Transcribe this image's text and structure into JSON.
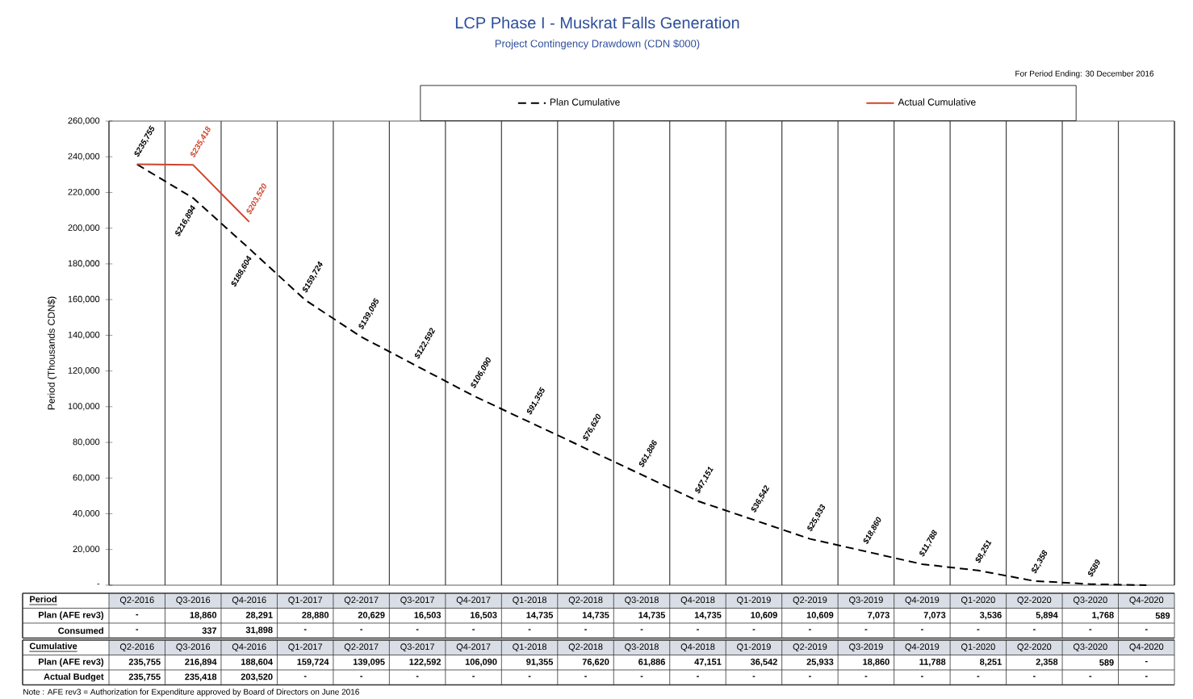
{
  "chart_data": [
    {
      "type": "line",
      "title": "LCP Phase I - Muskrat Falls Generation",
      "subtitle": "Project Contingency Drawdown (CDN $000)",
      "ylabel": "Period (Thousands CDN$)",
      "annotations": [
        "For Period Ending: 30 December 2016",
        "Note : AFE rev3 = Authorization for Expenditure approved by Board of Directors on June 2016"
      ],
      "categories": [
        null,
        null,
        null,
        null,
        null,
        null,
        null,
        null,
        null,
        null,
        null,
        null,
        null,
        null,
        null,
        null,
        null,
        null,
        null
      ],
      "series": [
        {
          "name": "Plan Cumulative",
          "color": "#000000",
          "line_style": "dashed",
          "values": [
            235755,
            216894,
            188604,
            159724,
            139095,
            122592,
            106090,
            91355,
            76620,
            61886,
            47151,
            36542,
            25933,
            18860,
            11788,
            8251,
            2358,
            589,
            0
          ],
          "value_labels": [
            "$235,755",
            "$216,894",
            "$188,604",
            "$159,724",
            "$139,095",
            "$122,592",
            "$106,090",
            "$91,355",
            "$76,620",
            "$61,886",
            "$47,151",
            "$36,542",
            "$25,933",
            "$18,860",
            "$11,788",
            "$8,251",
            "$2,358",
            "$589",
            null
          ]
        },
        {
          "name": "Actual Cumulative",
          "color": "#d0432b",
          "line_style": "solid",
          "values": [
            235755,
            235418,
            203520,
            null,
            null,
            null,
            null,
            null,
            null,
            null,
            null,
            null,
            null,
            null,
            null,
            null,
            null,
            null,
            null
          ],
          "value_labels": [
            null,
            "$235,418",
            "$203,520",
            null,
            null,
            null,
            null,
            null,
            null,
            null,
            null,
            null,
            null,
            null,
            null,
            null,
            null,
            null,
            null
          ]
        }
      ],
      "ylim": [
        0,
        260000
      ],
      "yticks": [
        {
          "value": 0,
          "label": "-"
        },
        {
          "value": 20000,
          "label": "20,000"
        },
        {
          "value": 40000,
          "label": "40,000"
        },
        {
          "value": 60000,
          "label": "60,000"
        },
        {
          "value": 80000,
          "label": "80,000"
        },
        {
          "value": 100000,
          "label": "100,000"
        },
        {
          "value": 120000,
          "label": "120,000"
        },
        {
          "value": 140000,
          "label": "140,000"
        },
        {
          "value": 160000,
          "label": "160,000"
        },
        {
          "value": 180000,
          "label": "180,000"
        },
        {
          "value": 200000,
          "label": "200,000"
        },
        {
          "value": 220000,
          "label": "220,000"
        },
        {
          "value": 240000,
          "label": "240,000"
        },
        {
          "value": 260000,
          "label": "260,000"
        }
      ],
      "grid": "x",
      "legend": "top",
      "tick_labels": "y"
    },
    {
      "type": "other",
      "title": "Period",
      "categories": [
        "Q2-2016",
        "Q3-2016",
        "Q4-2016",
        "Q1-2017",
        "Q2-2017",
        "Q3-2017",
        "Q4-2017",
        "Q1-2018",
        "Q2-2018",
        "Q3-2018",
        "Q4-2018",
        "Q1-2019",
        "Q2-2019",
        "Q3-2019",
        "Q4-2019",
        "Q1-2020",
        "Q2-2020",
        "Q3-2020",
        "Q4-2020"
      ],
      "series": [
        {
          "name": "Plan (AFE rev3)",
          "values": [
            null,
            18860,
            28291,
            28880,
            20629,
            16503,
            16503,
            14735,
            14735,
            14735,
            14735,
            10609,
            10609,
            7073,
            7073,
            3536,
            5894,
            1768,
            589
          ],
          "value_labels": [
            "-",
            "18,860",
            "28,291",
            "28,880",
            "20,629",
            "16,503",
            "16,503",
            "14,735",
            "14,735",
            "14,735",
            "14,735",
            "10,609",
            "10,609",
            "7,073",
            "7,073",
            "3,536",
            "5,894",
            "1,768",
            "589"
          ]
        },
        {
          "name": "Consumed",
          "values": [
            null,
            337,
            31898,
            null,
            null,
            null,
            null,
            null,
            null,
            null,
            null,
            null,
            null,
            null,
            null,
            null,
            null,
            null,
            null
          ],
          "value_labels": [
            "-",
            "337",
            "31,898",
            "-",
            "-",
            "-",
            "-",
            "-",
            "-",
            "-",
            "-",
            "-",
            "-",
            "-",
            "-",
            "-",
            "-",
            "-",
            "-"
          ]
        }
      ]
    },
    {
      "type": "other",
      "title": "Cumulative",
      "categories": [
        "Q2-2016",
        "Q3-2016",
        "Q4-2016",
        "Q1-2017",
        "Q2-2017",
        "Q3-2017",
        "Q4-2017",
        "Q1-2018",
        "Q2-2018",
        "Q3-2018",
        "Q4-2018",
        "Q1-2019",
        "Q2-2019",
        "Q3-2019",
        "Q4-2019",
        "Q1-2020",
        "Q2-2020",
        "Q3-2020",
        "Q4-2020"
      ],
      "series": [
        {
          "name": "Plan (AFE rev3)",
          "values": [
            235755,
            216894,
            188604,
            159724,
            139095,
            122592,
            106090,
            91355,
            76620,
            61886,
            47151,
            36542,
            25933,
            18860,
            11788,
            8251,
            2358,
            589,
            null
          ],
          "value_labels": [
            "235,755",
            "216,894",
            "188,604",
            "159,724",
            "139,095",
            "122,592",
            "106,090",
            "91,355",
            "76,620",
            "61,886",
            "47,151",
            "36,542",
            "25,933",
            "18,860",
            "11,788",
            "8,251",
            "2,358",
            "589",
            "-"
          ]
        },
        {
          "name": "Actual Budget",
          "values": [
            235755,
            235418,
            203520,
            null,
            null,
            null,
            null,
            null,
            null,
            null,
            null,
            null,
            null,
            null,
            null,
            null,
            null,
            null,
            null
          ],
          "value_labels": [
            "235,755",
            "235,418",
            "203,520",
            "-",
            "-",
            "-",
            "-",
            "-",
            "-",
            "-",
            "-",
            "-",
            "-",
            "-",
            "-",
            "-",
            "-",
            "-",
            "-"
          ]
        }
      ]
    }
  ]
}
